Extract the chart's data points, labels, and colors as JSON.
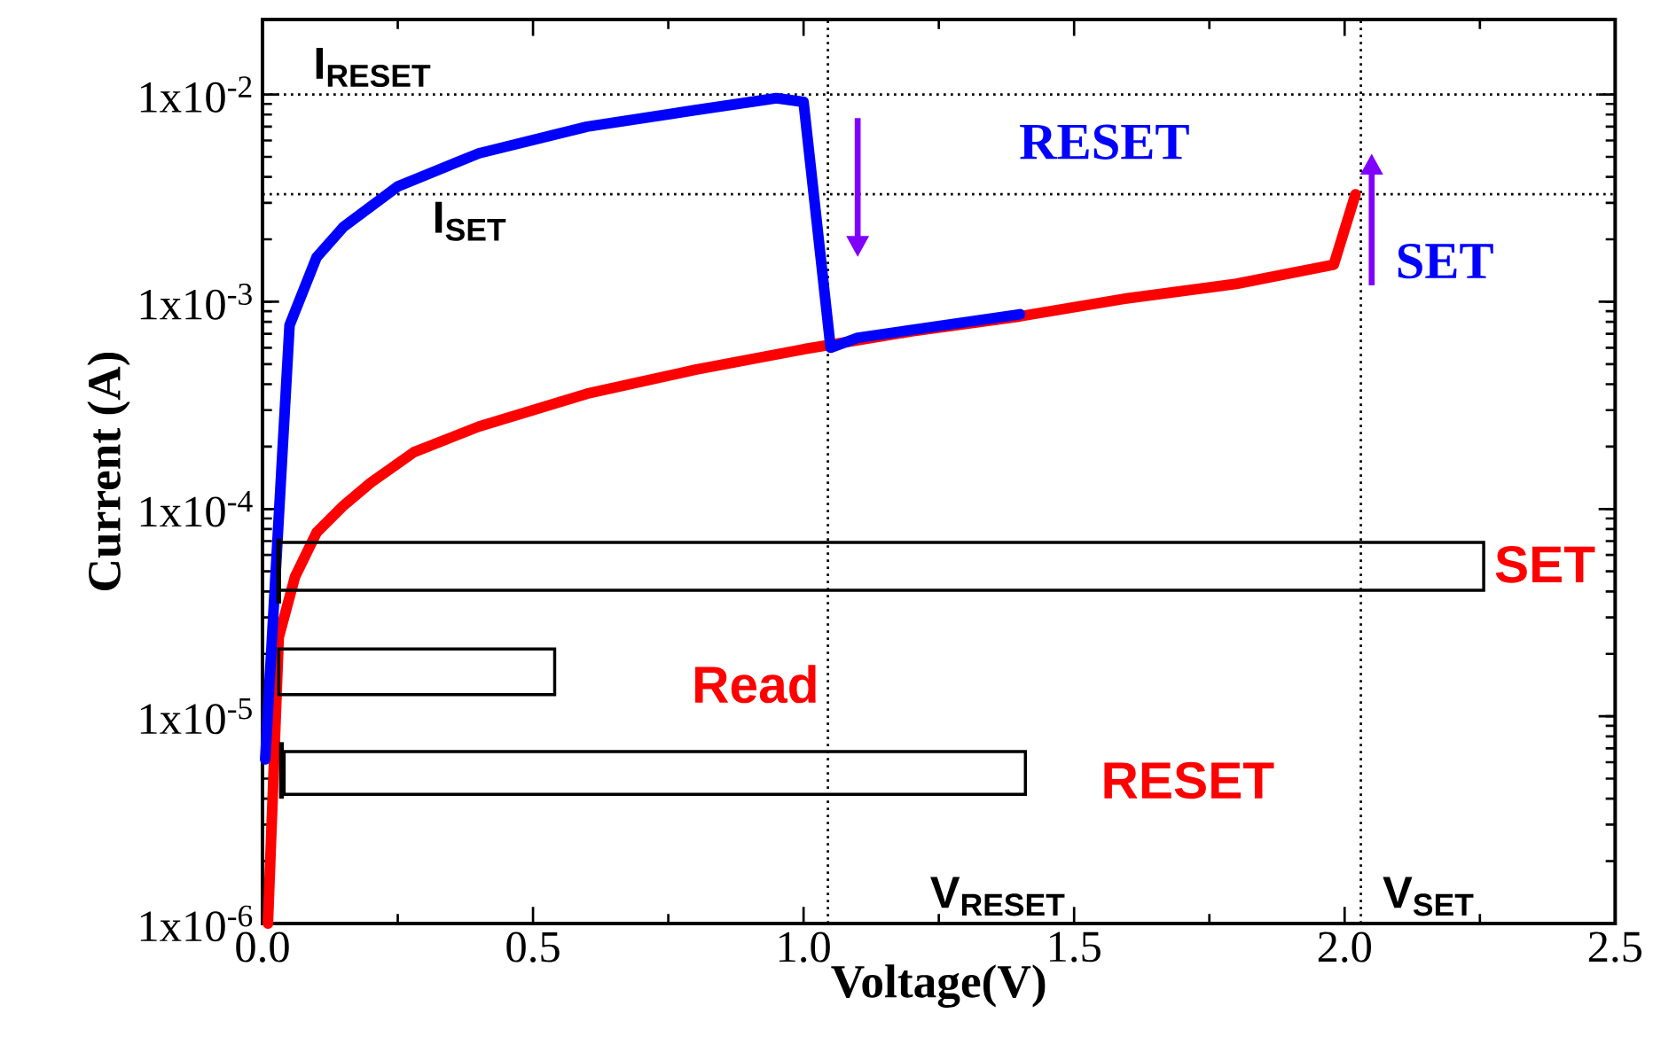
{
  "chart_data": {
    "type": "line",
    "xlabel": "Voltage(V)",
    "ylabel": "Current (A)",
    "log": "y",
    "xlim": [
      0,
      2.5
    ],
    "ylim": [
      1e-06,
      0.023
    ],
    "xticks": [
      {
        "value": 0,
        "label": "0.0"
      },
      {
        "value": 0.5,
        "label": "0.5"
      },
      {
        "value": 1,
        "label": "1.0"
      },
      {
        "value": 1.5,
        "label": "1.5"
      },
      {
        "value": 2,
        "label": "2.0"
      },
      {
        "value": 2.5,
        "label": "2.5"
      }
    ],
    "yticks": [
      {
        "value": 1e-06,
        "label": "1x10$^{-6}$"
      },
      {
        "value": 1e-05,
        "label": "1x10$^{-5}$"
      },
      {
        "value": 0.0001,
        "label": "1x10$^{-4}$"
      },
      {
        "value": 0.001,
        "label": "1x10$^{-3}$"
      },
      {
        "value": 0.01,
        "label": "1x10$^{-2}$"
      }
    ],
    "line_style": "solid",
    "series": [
      {
        "color": "#ff0000",
        "x": [
          0.01,
          0.03,
          0.06,
          0.1,
          0.15,
          0.2,
          0.28,
          0.4,
          0.6,
          0.8,
          1.0,
          1.2,
          1.4,
          1.6,
          1.8,
          1.98,
          2.02
        ],
        "values": [
          1e-06,
          2.4e-05,
          4.7e-05,
          7.7e-05,
          0.000104,
          0.000134,
          0.000188,
          0.00025,
          0.00036,
          0.00047,
          0.00059,
          0.00072,
          0.00085,
          0.00104,
          0.00122,
          0.00151,
          0.0033
        ]
      },
      {
        "color": "#0000ff",
        "x": [
          0.005,
          0.05,
          0.1,
          0.15,
          0.25,
          0.4,
          0.6,
          0.8,
          0.95,
          1.0,
          1.05,
          1.1,
          1.4
        ],
        "values": [
          6.2e-06,
          0.00077,
          0.00164,
          0.0023,
          0.0036,
          0.0052,
          0.007,
          0.0084,
          0.0096,
          0.0092,
          0.0006,
          0.00067,
          0.00087
        ]
      }
    ],
    "ref_lines": [
      {
        "axis": "y",
        "value": 0.01,
        "label": "I$_{RESET}$",
        "line_style": "dotted"
      },
      {
        "axis": "y",
        "value": 0.0033,
        "label": "I$_{SET}$",
        "line_style": "dotted"
      },
      {
        "axis": "x",
        "value": 1.045,
        "label": "V$_{RESET}$",
        "line_style": "dotted"
      },
      {
        "axis": "x",
        "value": 2.03,
        "label": "V$_{SET}$",
        "line_style": "dotted"
      }
    ],
    "annotations": [
      "RESET",
      "SET",
      "SET",
      "Read",
      "RESET"
    ]
  }
}
